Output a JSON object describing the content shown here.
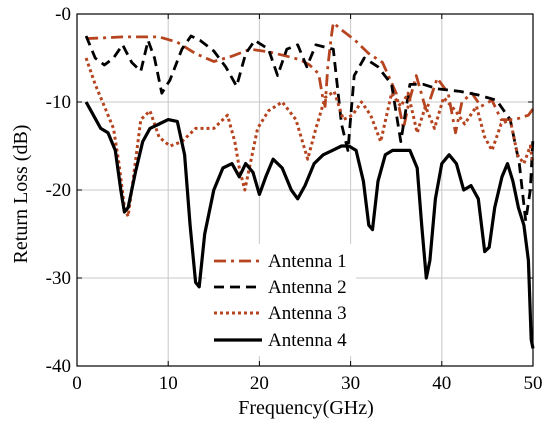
{
  "chart_data": {
    "type": "line",
    "xlabel": "Frequency(GHz)",
    "ylabel": "Return Loss (dB)",
    "xlim": [
      0,
      50
    ],
    "ylim": [
      -40,
      0
    ],
    "grid": true,
    "legend_position": "bottom-center",
    "x_ticks": [
      "0",
      "10",
      "20",
      "30",
      "40",
      "50"
    ],
    "y_ticks": [
      "-0",
      "-10",
      "-20",
      "-30",
      "-40"
    ],
    "series": [
      {
        "name": "Antenna 1",
        "color": "#b5441f",
        "style": "dashdot",
        "points": [
          [
            1,
            -2.8
          ],
          [
            3,
            -2.7
          ],
          [
            5,
            -2.6
          ],
          [
            7,
            -2.6
          ],
          [
            9,
            -2.6
          ],
          [
            11,
            -3.2
          ],
          [
            13,
            -4.5
          ],
          [
            15,
            -5.4
          ],
          [
            17,
            -4.8
          ],
          [
            19,
            -4.0
          ],
          [
            21,
            -4.3
          ],
          [
            23,
            -4.8
          ],
          [
            24.5,
            -5.2
          ],
          [
            25.5,
            -5.8
          ],
          [
            26.5,
            -6.8
          ],
          [
            27,
            -9.8
          ],
          [
            27.2,
            -10.5
          ],
          [
            27.5,
            -6.0
          ],
          [
            27.9,
            -2.5
          ],
          [
            28.1,
            -1.0
          ],
          [
            29,
            -1.8
          ],
          [
            30.5,
            -3.0
          ],
          [
            32,
            -4.5
          ],
          [
            33.5,
            -5.5
          ],
          [
            35,
            -9.0
          ],
          [
            35.8,
            -13.0
          ],
          [
            36.4,
            -10.0
          ],
          [
            37.2,
            -7.0
          ],
          [
            38.3,
            -11.0
          ],
          [
            39.5,
            -7.3
          ],
          [
            40.7,
            -9.0
          ],
          [
            41.5,
            -13.5
          ],
          [
            42.2,
            -10.0
          ],
          [
            43.3,
            -9.0
          ],
          [
            44.3,
            -10.5
          ],
          [
            45.5,
            -9.8
          ],
          [
            46.5,
            -12.0
          ],
          [
            48,
            -12.0
          ],
          [
            49.5,
            -11.5
          ],
          [
            50,
            -10.8
          ]
        ]
      },
      {
        "name": "Antenna 2",
        "color": "#000000",
        "style": "dashed",
        "points": [
          [
            1,
            -2.5
          ],
          [
            2,
            -5.0
          ],
          [
            3,
            -5.8
          ],
          [
            4,
            -5.0
          ],
          [
            5,
            -3.5
          ],
          [
            6,
            -5.5
          ],
          [
            7,
            -6.5
          ],
          [
            7.8,
            -3.0
          ],
          [
            8.5,
            -5.0
          ],
          [
            9.3,
            -9.0
          ],
          [
            10.2,
            -7.5
          ],
          [
            11.5,
            -4.0
          ],
          [
            12.5,
            -2.5
          ],
          [
            13.5,
            -3.0
          ],
          [
            15,
            -4.2
          ],
          [
            16.3,
            -6.0
          ],
          [
            17.5,
            -8.2
          ],
          [
            18.5,
            -4.5
          ],
          [
            19.5,
            -3.0
          ],
          [
            21,
            -4.0
          ],
          [
            22,
            -7.0
          ],
          [
            23,
            -4.0
          ],
          [
            24.2,
            -3.5
          ],
          [
            25.2,
            -6.0
          ],
          [
            26.2,
            -3.5
          ],
          [
            27.3,
            -3.8
          ],
          [
            28.1,
            -4.0
          ],
          [
            29,
            -12.5
          ],
          [
            29.7,
            -15.5
          ],
          [
            30.4,
            -7.0
          ],
          [
            31.5,
            -5.0
          ],
          [
            33,
            -6.0
          ],
          [
            34.5,
            -8.0
          ],
          [
            35.5,
            -14.5
          ],
          [
            36.5,
            -8.0
          ],
          [
            38,
            -8.0
          ],
          [
            39.5,
            -8.5
          ],
          [
            42,
            -8.8
          ],
          [
            44,
            -9.2
          ],
          [
            46,
            -9.8
          ],
          [
            47.5,
            -12.0
          ],
          [
            48.5,
            -17.0
          ],
          [
            49.2,
            -23.5
          ],
          [
            49.7,
            -20.0
          ],
          [
            50,
            -14.0
          ]
        ]
      },
      {
        "name": "Antenna 3",
        "color": "#b5441f",
        "style": "dotted",
        "points": [
          [
            1,
            -5.0
          ],
          [
            2,
            -8.0
          ],
          [
            3,
            -10.5
          ],
          [
            4,
            -13.0
          ],
          [
            4.6,
            -17.0
          ],
          [
            5.2,
            -22.0
          ],
          [
            5.6,
            -23.0
          ],
          [
            6.2,
            -18.5
          ],
          [
            7,
            -12.0
          ],
          [
            8,
            -11.0
          ],
          [
            9,
            -14.0
          ],
          [
            10.2,
            -15.0
          ],
          [
            11.5,
            -14.5
          ],
          [
            13,
            -13.0
          ],
          [
            15,
            -13.0
          ],
          [
            16.5,
            -11.5
          ],
          [
            17.3,
            -14.5
          ],
          [
            17.8,
            -17.5
          ],
          [
            18.4,
            -20.0
          ],
          [
            19,
            -17.0
          ],
          [
            19.8,
            -13.0
          ],
          [
            21,
            -11.0
          ],
          [
            22.5,
            -10.0
          ],
          [
            24,
            -12.0
          ],
          [
            25.3,
            -16.5
          ],
          [
            26.2,
            -13.0
          ],
          [
            27.2,
            -9.5
          ],
          [
            28.2,
            -8.8
          ],
          [
            29.2,
            -12.0
          ],
          [
            30.2,
            -11.5
          ],
          [
            31.2,
            -10.0
          ],
          [
            32.2,
            -11.5
          ],
          [
            33.3,
            -14.5
          ],
          [
            34.5,
            -9.0
          ],
          [
            35.5,
            -10.5
          ],
          [
            36.3,
            -9.0
          ],
          [
            37.3,
            -13.5
          ],
          [
            38.2,
            -10.5
          ],
          [
            39.2,
            -13.0
          ],
          [
            40.2,
            -9.5
          ],
          [
            41.5,
            -11.0
          ],
          [
            42.5,
            -12.5
          ],
          [
            43.8,
            -10.5
          ],
          [
            44.7,
            -14.0
          ],
          [
            45.5,
            -15.5
          ],
          [
            46.5,
            -12.5
          ],
          [
            47.5,
            -12.0
          ],
          [
            48.3,
            -16.0
          ],
          [
            49,
            -17.0
          ],
          [
            49.7,
            -15.0
          ],
          [
            50,
            -17.0
          ]
        ]
      },
      {
        "name": "Antenna 4",
        "color": "#000000",
        "style": "solid",
        "points": [
          [
            1,
            -10.0
          ],
          [
            1.8,
            -11.5
          ],
          [
            2.6,
            -13.0
          ],
          [
            3.4,
            -13.5
          ],
          [
            4.2,
            -15.5
          ],
          [
            4.8,
            -20.0
          ],
          [
            5.2,
            -22.5
          ],
          [
            5.6,
            -22.0
          ],
          [
            6.4,
            -18.0
          ],
          [
            7.2,
            -14.5
          ],
          [
            8,
            -13.0
          ],
          [
            9,
            -12.5
          ],
          [
            10,
            -12.0
          ],
          [
            11,
            -12.2
          ],
          [
            11.8,
            -16.0
          ],
          [
            12.4,
            -24.0
          ],
          [
            13,
            -30.5
          ],
          [
            13.4,
            -31.0
          ],
          [
            14,
            -25.0
          ],
          [
            15,
            -20.0
          ],
          [
            16,
            -17.5
          ],
          [
            17,
            -17.0
          ],
          [
            17.8,
            -18.5
          ],
          [
            18.5,
            -17.0
          ],
          [
            19.3,
            -18.0
          ],
          [
            20,
            -20.5
          ],
          [
            20.7,
            -18.5
          ],
          [
            21.5,
            -16.5
          ],
          [
            22.5,
            -17.5
          ],
          [
            23.5,
            -20.0
          ],
          [
            24.2,
            -21.0
          ],
          [
            25,
            -19.5
          ],
          [
            26,
            -17.0
          ],
          [
            27,
            -16.0
          ],
          [
            28,
            -15.5
          ],
          [
            29,
            -15.0
          ],
          [
            29.8,
            -15.0
          ],
          [
            30.6,
            -15.5
          ],
          [
            31.4,
            -19.0
          ],
          [
            32,
            -24.0
          ],
          [
            32.4,
            -24.5
          ],
          [
            33,
            -19.0
          ],
          [
            33.8,
            -16.0
          ],
          [
            34.6,
            -15.5
          ],
          [
            35.6,
            -15.5
          ],
          [
            36.5,
            -15.5
          ],
          [
            37.3,
            -17.5
          ],
          [
            37.8,
            -24.0
          ],
          [
            38.3,
            -30.0
          ],
          [
            38.7,
            -28.0
          ],
          [
            39.3,
            -21.0
          ],
          [
            40,
            -17.0
          ],
          [
            40.8,
            -16.0
          ],
          [
            41.6,
            -17.0
          ],
          [
            42.4,
            -20.0
          ],
          [
            43.2,
            -19.5
          ],
          [
            44,
            -21.0
          ],
          [
            44.7,
            -27.0
          ],
          [
            45.2,
            -26.5
          ],
          [
            45.8,
            -22.0
          ],
          [
            46.6,
            -18.5
          ],
          [
            47.2,
            -17.0
          ],
          [
            47.8,
            -19.0
          ],
          [
            48.4,
            -22.0
          ],
          [
            49,
            -24.0
          ],
          [
            49.5,
            -28.0
          ],
          [
            49.8,
            -37.0
          ],
          [
            50,
            -38.0
          ]
        ]
      }
    ]
  }
}
